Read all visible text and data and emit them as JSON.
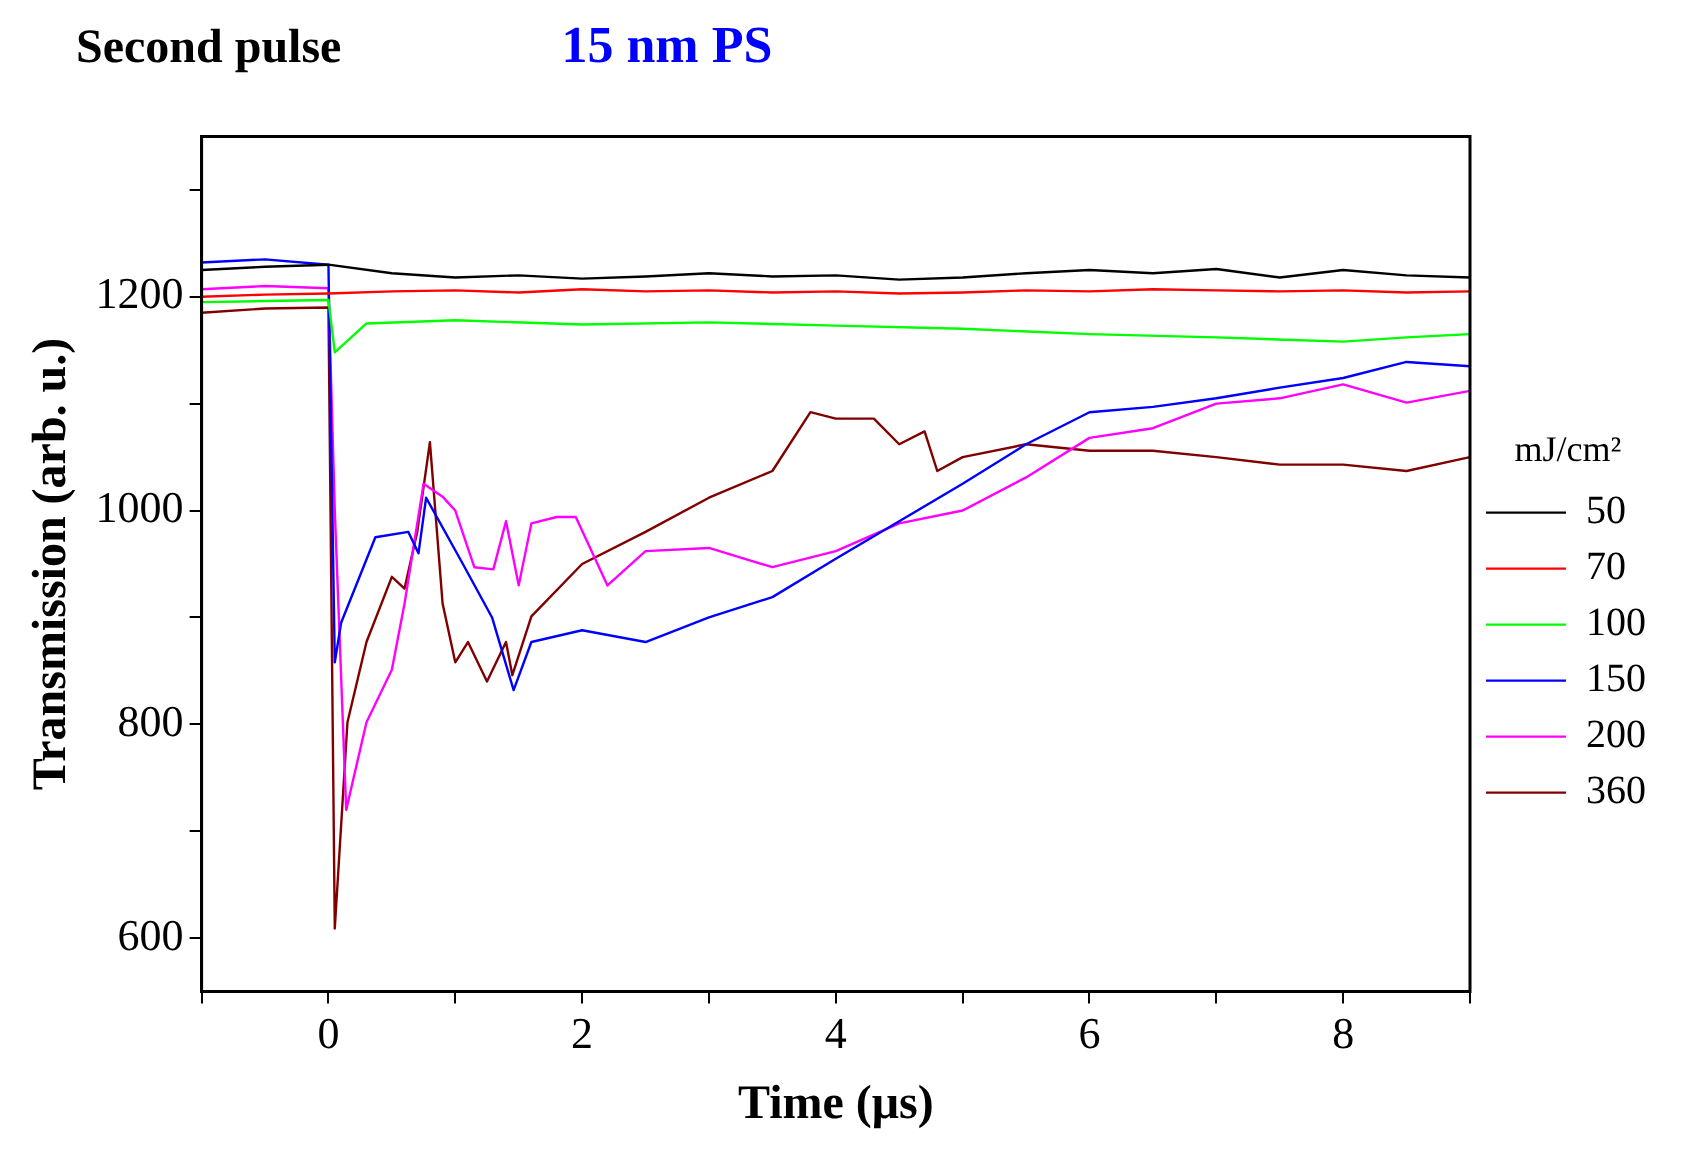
{
  "chart_data": {
    "type": "line",
    "title": "Second pulse",
    "subtitle": "15 nm PS",
    "xlabel": "Time (μs)",
    "ylabel": "Transmission (arb. u.)",
    "legend_title": "mJ/cm²",
    "legend": "right",
    "grid": false,
    "marker": "none",
    "line_style": "solid",
    "xlim": [
      -1,
      9
    ],
    "xticks": [
      {
        "value": -1,
        "label": null
      },
      0,
      {
        "value": 1,
        "label": null
      },
      2,
      {
        "value": 3,
        "label": null
      },
      4,
      {
        "value": 5,
        "label": null
      },
      6,
      {
        "value": 7,
        "label": null
      },
      8,
      {
        "value": 9,
        "label": null
      }
    ],
    "ylim": [
      550,
      1350
    ],
    "yticks": [
      {
        "value": 600,
        "label": "600"
      },
      {
        "value": 700,
        "label": null
      },
      {
        "value": 800,
        "label": "800"
      },
      {
        "value": 900,
        "label": null
      },
      {
        "value": 1000,
        "label": "1000"
      },
      {
        "value": 1100,
        "label": null
      },
      {
        "value": 1200,
        "label": "1200"
      },
      {
        "value": 1300,
        "label": null
      }
    ],
    "series": [
      {
        "name": "50",
        "color": "#000000",
        "x": [
          -1,
          -0.5,
          0,
          0.5,
          1,
          1.5,
          2,
          2.5,
          3,
          3.5,
          4,
          4.5,
          5,
          5.5,
          6,
          6.5,
          7,
          7.5,
          8,
          8.5,
          9
        ],
        "values": [
          1225,
          1228,
          1230,
          1222,
          1218,
          1220,
          1217,
          1219,
          1222,
          1219,
          1220,
          1216,
          1218,
          1222,
          1225,
          1222,
          1226,
          1218,
          1225,
          1220,
          1218
        ]
      },
      {
        "name": "70",
        "color": "#ff0000",
        "x": [
          -1,
          -0.5,
          0,
          0.5,
          1,
          1.5,
          2,
          2.5,
          3,
          3.5,
          4,
          4.5,
          5,
          5.5,
          6,
          6.5,
          7,
          7.5,
          8,
          8.5,
          9
        ],
        "values": [
          1200,
          1202,
          1203,
          1205,
          1206,
          1204,
          1207,
          1205,
          1206,
          1204,
          1205,
          1203,
          1204,
          1206,
          1205,
          1207,
          1206,
          1205,
          1206,
          1204,
          1205
        ]
      },
      {
        "name": "100",
        "color": "#00ff00",
        "x": [
          -1,
          -0.5,
          0,
          0.05,
          0.3,
          1,
          2,
          3,
          4,
          5,
          6,
          7,
          8,
          8.5,
          9
        ],
        "values": [
          1195,
          1196,
          1197,
          1148,
          1175,
          1178,
          1174,
          1176,
          1173,
          1170,
          1165,
          1162,
          1158,
          1162,
          1165
        ]
      },
      {
        "name": "150",
        "color": "#0000ff",
        "x": [
          -1,
          -0.5,
          0,
          0.05,
          0.1,
          0.37,
          0.63,
          0.71,
          0.77,
          1.06,
          1.29,
          1.46,
          1.6,
          2,
          2.5,
          3,
          3.5,
          4,
          4.5,
          5,
          5.5,
          6,
          6.5,
          7,
          7.5,
          8,
          8.5,
          9
        ],
        "values": [
          1232,
          1235,
          1230,
          858,
          895,
          975,
          980,
          960,
          1012,
          950,
          900,
          832,
          877,
          888,
          877,
          900,
          919,
          955,
          990,
          1025,
          1062,
          1092,
          1097,
          1105,
          1115,
          1124,
          1139,
          1135
        ]
      },
      {
        "name": "200",
        "color": "#ff00ff",
        "x": [
          -1,
          -0.5,
          0,
          0.05,
          0.14,
          0.3,
          0.5,
          0.6,
          0.75,
          0.9,
          1,
          1.15,
          1.3,
          1.4,
          1.5,
          1.6,
          1.8,
          1.95,
          2.2,
          2.5,
          3,
          3.5,
          4,
          4.5,
          5,
          5.5,
          6,
          6.5,
          7,
          7.5,
          8,
          8.5,
          9
        ],
        "values": [
          1207,
          1210,
          1208,
          1000,
          720,
          802,
          851,
          913,
          1025,
          1013,
          1000,
          947,
          945,
          990,
          930,
          988,
          994,
          994,
          930,
          962,
          965,
          947,
          962,
          988,
          1000,
          1031,
          1068,
          1077,
          1100,
          1105,
          1118,
          1101,
          1112
        ]
      },
      {
        "name": "360",
        "color": "#800000",
        "x": [
          -1,
          -0.5,
          0,
          0.05,
          0.15,
          0.3,
          0.5,
          0.6,
          0.7,
          0.8,
          0.9,
          1,
          1.1,
          1.25,
          1.4,
          1.45,
          1.6,
          2,
          2.5,
          3,
          3.5,
          3.8,
          4,
          4.3,
          4.5,
          4.7,
          4.8,
          5,
          5.5,
          6,
          6.5,
          7,
          7.5,
          8,
          8.5,
          9
        ],
        "values": [
          1185,
          1189,
          1190,
          609,
          802,
          877,
          938,
          927,
          980,
          1064,
          913,
          858,
          877,
          840,
          877,
          846,
          901,
          950,
          980,
          1012,
          1037,
          1092,
          1086,
          1086,
          1062,
          1074,
          1037,
          1050,
          1062,
          1056,
          1056,
          1050,
          1043,
          1043,
          1037,
          1050
        ]
      }
    ]
  }
}
